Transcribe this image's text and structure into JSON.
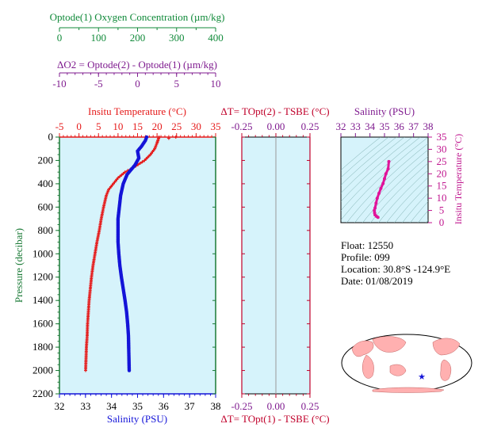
{
  "colors": {
    "oxygen": "#118a3a",
    "delta_o2": "#7f1b8f",
    "temperature": "#e51a1a",
    "salinity": "#1414d8",
    "delta_t": "#c0002a",
    "salinity_ts": "#c0168f",
    "profile_magenta": "#e0149a",
    "pressure": "#1a7a36",
    "plot_bg": "#d6f3fb"
  },
  "axes": {
    "oxygen": {
      "label": "Optode(1) Oxygen Concentration (µm/kg)",
      "ticks": [
        "0",
        "100",
        "200",
        "300",
        "400"
      ]
    },
    "delta_o2": {
      "label": "ΔO2 = Optode(2) - Optode(1)   (µm/kg)",
      "ticks": [
        "-10",
        "-5",
        "0",
        "5",
        "10"
      ]
    },
    "temperature": {
      "label": "Insitu Temperature (°C)",
      "ticks": [
        "-5",
        "0",
        "5",
        "10",
        "15",
        "20",
        "25",
        "30",
        "35"
      ]
    },
    "delta_t_top": {
      "label": "ΔT= TOpt(2) - TSBE (°C)",
      "ticks": [
        "-0.25",
        "0.00",
        "0.25"
      ]
    },
    "delta_t_bottom": {
      "label": "ΔT= TOpt(1) - TSBE (°C)",
      "ticks": [
        "-0.25",
        "0.00",
        "0.25"
      ]
    },
    "salinity_ts": {
      "label": "Salinity (PSU)",
      "ticks": [
        "32",
        "33",
        "34",
        "35",
        "36",
        "37",
        "38"
      ]
    },
    "temp_ts": {
      "label": "Insitu Temperature (°C)",
      "ticks": [
        "0",
        "5",
        "10",
        "15",
        "20",
        "25",
        "30",
        "35"
      ]
    },
    "pressure": {
      "label": "Pressure (decibar)",
      "ticks": [
        "0",
        "200",
        "400",
        "600",
        "800",
        "1000",
        "1200",
        "1400",
        "1600",
        "1800",
        "2000",
        "2200"
      ]
    },
    "salinity": {
      "label": "Salinity (PSU)",
      "ticks": [
        "32",
        "33",
        "34",
        "35",
        "36",
        "37",
        "38"
      ]
    }
  },
  "info": {
    "float": "Float:  12550",
    "profile": "Profile:  099",
    "location": "Location:  30.8°S  -124.9°E",
    "date": "Date:  01/08/2019"
  },
  "chart_data": [
    {
      "type": "line",
      "name": "temperature_salinity_profile",
      "ylim": [
        2200,
        0
      ],
      "y_axis": "Pressure (decibar)",
      "series": [
        {
          "name": "Insitu Temperature (°C)",
          "xlim": [
            -5,
            35
          ],
          "points": [
            [
              20.5,
              0
            ],
            [
              20.3,
              20
            ],
            [
              20.0,
              50
            ],
            [
              19.4,
              100
            ],
            [
              18.3,
              150
            ],
            [
              16.8,
              200
            ],
            [
              14.0,
              260
            ],
            [
              11.8,
              300
            ],
            [
              10.0,
              350
            ],
            [
              8.8,
              400
            ],
            [
              7.6,
              450
            ],
            [
              7.0,
              500
            ],
            [
              6.3,
              600
            ],
            [
              5.7,
              700
            ],
            [
              5.2,
              800
            ],
            [
              4.6,
              900
            ],
            [
              4.1,
              1000
            ],
            [
              3.6,
              1100
            ],
            [
              3.2,
              1200
            ],
            [
              2.9,
              1300
            ],
            [
              2.6,
              1400
            ],
            [
              2.4,
              1500
            ],
            [
              2.2,
              1600
            ],
            [
              2.1,
              1700
            ],
            [
              1.9,
              1800
            ],
            [
              1.8,
              1900
            ],
            [
              1.7,
              2000
            ]
          ]
        },
        {
          "name": "Salinity (PSU)",
          "xlim": [
            32,
            38
          ],
          "points": [
            [
              35.35,
              0
            ],
            [
              35.3,
              30
            ],
            [
              35.15,
              80
            ],
            [
              35.0,
              120
            ],
            [
              35.05,
              180
            ],
            [
              34.9,
              240
            ],
            [
              34.6,
              320
            ],
            [
              34.45,
              400
            ],
            [
              34.35,
              500
            ],
            [
              34.3,
              600
            ],
            [
              34.25,
              700
            ],
            [
              34.25,
              800
            ],
            [
              34.25,
              900
            ],
            [
              34.28,
              1000
            ],
            [
              34.32,
              1100
            ],
            [
              34.38,
              1200
            ],
            [
              34.45,
              1300
            ],
            [
              34.52,
              1400
            ],
            [
              34.58,
              1500
            ],
            [
              34.62,
              1600
            ],
            [
              34.65,
              1700
            ],
            [
              34.66,
              1800
            ],
            [
              34.67,
              1900
            ],
            [
              34.68,
              2000
            ]
          ]
        },
        {
          "name": "Insitu Temperature (°C) surface marks",
          "xlim": [
            -5,
            35
          ],
          "points": [
            [
              24.8,
              0
            ],
            [
              23.0,
              10
            ]
          ]
        }
      ]
    },
    {
      "type": "line",
      "name": "delta_t_panel",
      "xlim": [
        -0.25,
        0.25
      ],
      "ylim": [
        2200,
        0
      ],
      "series": []
    },
    {
      "type": "scatter",
      "name": "ts_diagram",
      "xlim": [
        32,
        38
      ],
      "ylim": [
        0,
        35
      ],
      "series": [
        {
          "name": "Salinity (PSU)",
          "points": [
            [
              35.3,
              25.0
            ],
            [
              35.25,
              22.0
            ],
            [
              35.1,
              20.0
            ],
            [
              35.0,
              18.0
            ],
            [
              34.9,
              16.0
            ],
            [
              34.75,
              14.0
            ],
            [
              34.62,
              12.0
            ],
            [
              34.5,
              10.0
            ],
            [
              34.42,
              8.0
            ],
            [
              34.35,
              6.0
            ],
            [
              34.3,
              5.0
            ],
            [
              34.32,
              4.0
            ],
            [
              34.35,
              3.2
            ],
            [
              34.45,
              2.6
            ],
            [
              34.55,
              2.2
            ]
          ]
        }
      ]
    }
  ]
}
